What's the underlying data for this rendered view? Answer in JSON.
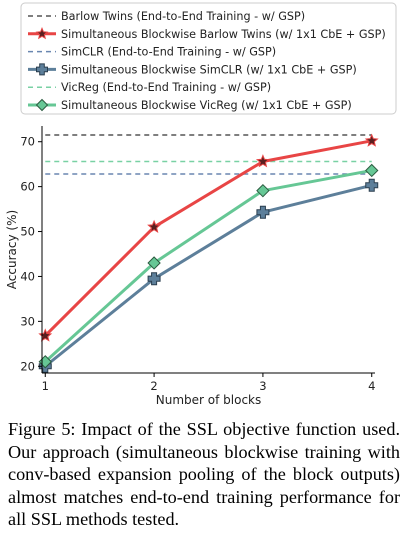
{
  "chart_data": {
    "type": "line",
    "xlabel": "Number of blocks",
    "ylabel": "Accuracy (%)",
    "x": [
      1,
      2,
      3,
      4
    ],
    "xlim": [
      0.97,
      4.03
    ],
    "ylim": [
      18.5,
      73.5
    ],
    "yticks": [
      20,
      30,
      40,
      50,
      60,
      70
    ],
    "grid": false,
    "legend_position": "top",
    "reference_lines": [
      {
        "name": "Barlow Twins (End-to-End Training - w/ GSP)",
        "value": 71.5,
        "color": "#555555",
        "style": "dashed"
      },
      {
        "name": "SimCLR (End-to-End Training - w/ GSP)",
        "value": 62.8,
        "color": "#6a86b0",
        "style": "dashed"
      },
      {
        "name": "VicReg (End-to-End Training - w/ GSP)",
        "value": 65.6,
        "color": "#79d1a4",
        "style": "dashed"
      }
    ],
    "series": [
      {
        "name": "Simultaneous Blockwise Barlow Twins (w/ 1x1 CbE + GSP)",
        "values": [
          26.8,
          51.0,
          65.6,
          70.2
        ],
        "color": "#e84545",
        "marker": "star",
        "marker_fill": "#5a1f1f"
      },
      {
        "name": "Simultaneous Blockwise SimCLR (w/ 1x1 CbE + GSP)",
        "values": [
          20.0,
          39.5,
          54.3,
          60.3
        ],
        "color": "#5d7f9a",
        "marker": "plus",
        "marker_fill": "#5d7f9a"
      },
      {
        "name": "Simultaneous Blockwise VicReg (w/ 1x1 CbE + GSP)",
        "values": [
          21.0,
          43.0,
          59.1,
          63.6
        ],
        "color": "#66c795",
        "marker": "diamond",
        "marker_fill": "#66c795"
      }
    ]
  },
  "caption": "Figure 5:  Impact of the SSL objective function used. Our approach (simultaneous blockwise training with conv-based expansion pooling of the block outputs) almost matches end-to-end training performance for all SSL methods tested."
}
